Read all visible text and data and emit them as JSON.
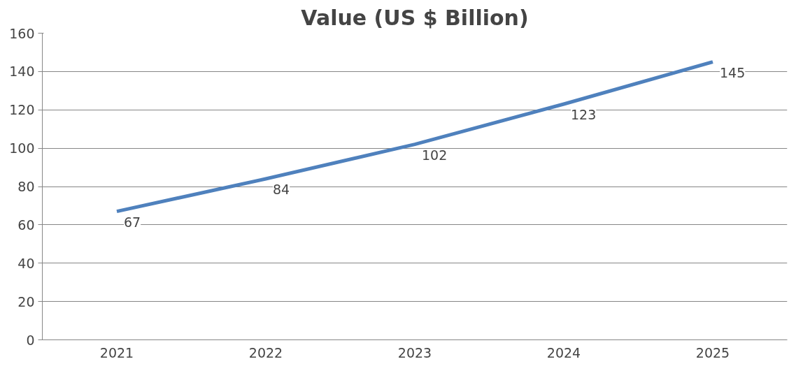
{
  "chart_data": {
    "type": "line",
    "title": "Value (US $ Billion)",
    "categories": [
      "2021",
      "2022",
      "2023",
      "2024",
      "2025"
    ],
    "series": [
      {
        "color": "#4f81bd",
        "values": [
          67,
          84,
          102,
          123,
          145
        ]
      }
    ],
    "ylim": [
      0,
      160
    ],
    "yticks": [
      0,
      20,
      40,
      60,
      80,
      100,
      120,
      140,
      160
    ],
    "grid": "y",
    "marker": "none",
    "line_style": "solid",
    "data_labels": true
  }
}
